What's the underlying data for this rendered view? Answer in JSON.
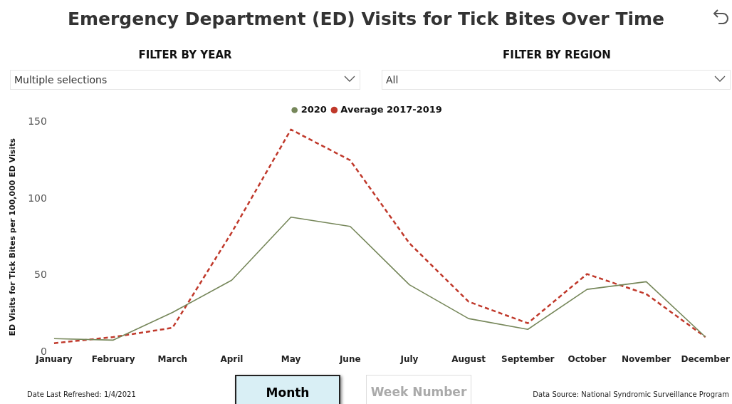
{
  "chart_data": {
    "type": "line",
    "title": "Emergency Department (ED) Visits for Tick Bites Over Time",
    "ylabel": "ED Visits for Tick Bites per 100,000 ED Visits",
    "categories": [
      "January",
      "February",
      "March",
      "April",
      "May",
      "June",
      "July",
      "August",
      "September",
      "October",
      "November",
      "December"
    ],
    "series": [
      {
        "name": "2020",
        "color": "#76875a",
        "line_style": "solid",
        "values": [
          9,
          8,
          26,
          47,
          88,
          82,
          44,
          22,
          15,
          41,
          46,
          10
        ]
      },
      {
        "name": "Average 2017-2019",
        "color": "#c0392b",
        "line_style": "dashed",
        "values": [
          6,
          10,
          16,
          78,
          145,
          125,
          71,
          33,
          19,
          51,
          38,
          10
        ]
      }
    ],
    "ylim": [
      0,
      150
    ],
    "yticks": [
      0,
      50,
      100,
      150
    ],
    "grid": false,
    "legend": "top",
    "marker": "none",
    "annotations": [
      "FILTER BY YEAR",
      "Multiple selections",
      "FILTER BY REGION",
      "All",
      "Month",
      "Week Number",
      "Date Last Refreshed: 1/4/2021",
      "Data Source: National Syndromic Surveillance Program"
    ]
  }
}
